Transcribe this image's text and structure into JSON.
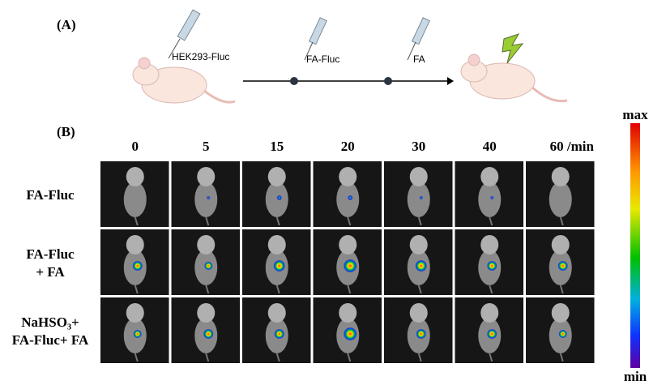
{
  "panel_a": {
    "label": "(A)",
    "steps": [
      "HEK293-Fluc",
      "FA-Fluc",
      "FA"
    ]
  },
  "panel_b": {
    "label": "(B)",
    "times": [
      "0",
      "5",
      "15",
      "20",
      "30",
      "40",
      "60 /min"
    ],
    "rows": [
      {
        "lines": [
          "FA-Fluc"
        ]
      },
      {
        "lines": [
          "FA-Fluc",
          "+ FA"
        ]
      },
      {
        "lines": [
          "NaHSO₃+",
          "FA-Fluc+ FA"
        ]
      }
    ],
    "colorbar": {
      "max": "max",
      "min": "min"
    }
  }
}
